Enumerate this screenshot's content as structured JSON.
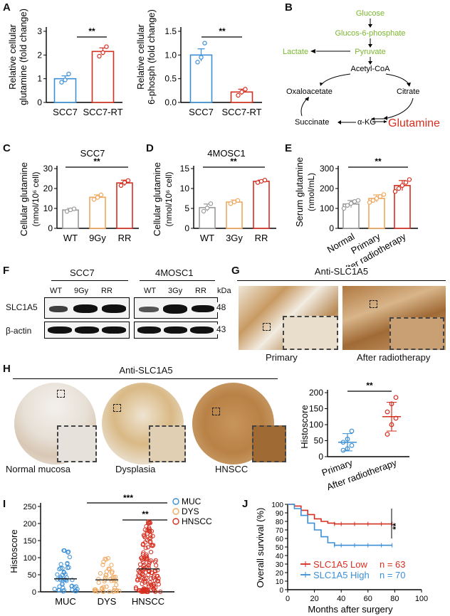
{
  "figure": {
    "panel_labels": [
      "A",
      "B",
      "C",
      "D",
      "E",
      "F",
      "G",
      "H",
      "I",
      "J"
    ],
    "significance": {
      "two": "**",
      "three": "***"
    }
  },
  "panelA": {
    "left": {
      "ylabel_1": "Relative cellular",
      "ylabel_2": "glutamine (fold change)",
      "yticks": [
        "0",
        "1",
        "2",
        "3"
      ],
      "sig": "**"
    },
    "right": {
      "ylabel_1": "Relative cellular",
      "ylabel_2": "6-phosph (fold change)",
      "yticks": [
        "0.0",
        "0.5",
        "1.0",
        "1.5"
      ],
      "sig": "**"
    }
  },
  "panelB": {
    "glucose": "Glucose",
    "g6p": "Glucos-6-phosphate",
    "lactate": "Lactate",
    "pyruvate": "Pyruvate",
    "acetylcoa": "Acetyl-CoA",
    "oxaloacetate": "Oxaloacetate",
    "citrate": "Citrate",
    "succinate": "Succinate",
    "akg": "α-KG",
    "glutamine": "Glutamine",
    "colors": {
      "green": "#7ab52e",
      "red": "#d62e1f"
    }
  },
  "panelC": {
    "title": "SCC7",
    "ylabel_1": "Cellular glutamine",
    "ylabel_2": "(nmol/10⁶ cell)",
    "yticks": [
      "0",
      "10",
      "20",
      "30"
    ],
    "sig": "**"
  },
  "panelD": {
    "title": "4MOSC1",
    "ylabel_1": "Cellular glutamine",
    "ylabel_2": "(nmol/10⁶ cell)",
    "yticks": [
      "0",
      "5",
      "10",
      "15"
    ],
    "sig": "**"
  },
  "panelE": {
    "ylabel_1": "Serum glutamine",
    "ylabel_2": "(nmol/mL)",
    "yticks": [
      "0",
      "100",
      "200",
      "300"
    ],
    "sig": "**"
  },
  "panelF": {
    "groups": [
      "SCC7",
      "4MOSC1"
    ],
    "lanes_scc7": [
      "WT",
      "9Gy",
      "RR"
    ],
    "lanes_4mosc1": [
      "WT",
      "3Gy",
      "RR"
    ],
    "kda": "kDa",
    "rows": [
      {
        "label": "SLC1A5",
        "mw": "48"
      },
      {
        "label": "β-actin",
        "mw": "43"
      }
    ]
  },
  "panelG": {
    "title": "Anti-SLC1A5",
    "captions": [
      "Primary",
      "After radiotherapy"
    ]
  },
  "panelH": {
    "title": "Anti-SLC1A5",
    "captions": [
      "Normal mucosa",
      "Dysplasia",
      "HNSCC"
    ],
    "scatter": {
      "ylabel": "Histoscore",
      "yticks": [
        "0",
        "50",
        "100",
        "150",
        "200"
      ],
      "sig": "**"
    }
  },
  "panelI": {
    "ylabel": "Histoscore",
    "yticks": [
      "0",
      "50",
      "100",
      "150",
      "200",
      "250"
    ],
    "legend": [
      "MUC",
      "DYS",
      "HNSCC"
    ],
    "sig": [
      "***",
      "**"
    ]
  },
  "panelJ": {
    "ylabel": "Overall survival (%)",
    "xlabel": "Months after surgery",
    "xticks": [
      "0",
      "20",
      "40",
      "60",
      "80",
      "100"
    ],
    "yticks": [
      "0",
      "10",
      "20",
      "30",
      "40",
      "50",
      "60",
      "70",
      "80",
      "90",
      "100"
    ],
    "sig": "**",
    "legend": [
      {
        "label": "SLC1A5 Low",
        "n": "n = 63",
        "color": "#d62e1f"
      },
      {
        "label": "SLC1A5 High",
        "n": "n = 70",
        "color": "#3b8fd6"
      }
    ]
  },
  "chart_data": [
    {
      "id": "A_left",
      "type": "bar",
      "categories": [
        "SCC7",
        "SCC7-RT"
      ],
      "values": [
        1.0,
        2.15
      ],
      "errors": [
        0.12,
        0.15
      ],
      "points": [
        [
          0.85,
          0.95,
          1.2
        ],
        [
          1.95,
          2.1,
          2.35
        ]
      ],
      "ylim": [
        0,
        3
      ],
      "colors": [
        "#3b8fd6",
        "#d62e1f"
      ]
    },
    {
      "id": "A_right",
      "type": "bar",
      "categories": [
        "SCC7",
        "SCC7-RT"
      ],
      "values": [
        1.0,
        0.22
      ],
      "errors": [
        0.13,
        0.06
      ],
      "points": [
        [
          0.85,
          0.95,
          1.25
        ],
        [
          0.15,
          0.22,
          0.28
        ]
      ],
      "ylim": [
        0,
        1.5
      ],
      "colors": [
        "#3b8fd6",
        "#d62e1f"
      ]
    },
    {
      "id": "C",
      "type": "bar",
      "categories": [
        "WT",
        "9Gy",
        "RR"
      ],
      "values": [
        9.2,
        15.6,
        22.8
      ],
      "errors": [
        0.8,
        1.2,
        1.4
      ],
      "points": [
        [
          8.5,
          9.3,
          9.8
        ],
        [
          14.5,
          15.5,
          16.8
        ],
        [
          21.5,
          23.0,
          24.0
        ]
      ],
      "ylim": [
        0,
        30
      ],
      "colors": [
        "#9a9a9a",
        "#f0a860",
        "#d62e1f"
      ]
    },
    {
      "id": "D",
      "type": "bar",
      "categories": [
        "WT",
        "3Gy",
        "RR"
      ],
      "values": [
        5.2,
        6.6,
        11.8
      ],
      "errors": [
        0.9,
        0.5,
        0.3
      ],
      "points": [
        [
          4.3,
          5.1,
          6.2
        ],
        [
          6.2,
          6.6,
          7.0
        ],
        [
          11.5,
          11.8,
          12.1
        ]
      ],
      "ylim": [
        0,
        15
      ],
      "colors": [
        "#9a9a9a",
        "#f0a860",
        "#d62e1f"
      ]
    },
    {
      "id": "E",
      "type": "bar",
      "categories": [
        "Normal",
        "Primary",
        "After radiotherapy"
      ],
      "values": [
        122,
        150,
        215
      ],
      "errors": [
        18,
        18,
        25
      ],
      "points": [
        [
          100,
          115,
          125,
          135,
          140
        ],
        [
          130,
          140,
          150,
          160,
          170
        ],
        [
          185,
          200,
          215,
          230,
          245
        ]
      ],
      "ylim": [
        0,
        300
      ],
      "colors": [
        "#9a9a9a",
        "#f0a860",
        "#d62e1f"
      ]
    },
    {
      "id": "H_scatter",
      "type": "scatter",
      "categories": [
        "Primary",
        "After radiotherapy"
      ],
      "means": [
        45,
        125
      ],
      "sd": [
        27,
        45
      ],
      "points": [
        [
          20,
          25,
          35,
          45,
          55,
          80
        ],
        [
          70,
          100,
          120,
          140,
          165,
          185
        ]
      ],
      "ylim": [
        0,
        200
      ],
      "colors": [
        "#3b8fd6",
        "#d62e1f"
      ]
    },
    {
      "id": "I",
      "type": "scatter",
      "categories": [
        "MUC",
        "DYS",
        "HNSCC"
      ],
      "means": [
        38,
        35,
        67
      ],
      "sd": [
        25,
        22,
        45
      ],
      "ylim": [
        0,
        250
      ],
      "colors": [
        "#3b8fd6",
        "#f0a860",
        "#d62e1f"
      ]
    },
    {
      "id": "J",
      "type": "line",
      "xlim": [
        0,
        100
      ],
      "ylim": [
        0,
        100
      ],
      "series": [
        {
          "name": "SLC1A5 Low",
          "x": [
            0,
            5,
            10,
            15,
            20,
            25,
            30,
            35,
            40,
            50,
            60,
            70,
            78
          ],
          "y": [
            100,
            98,
            93,
            88,
            83,
            80,
            78,
            77,
            77,
            77,
            77,
            77,
            77
          ]
        },
        {
          "name": "SLC1A5 High",
          "x": [
            0,
            5,
            10,
            15,
            20,
            25,
            30,
            35,
            40,
            50,
            60,
            70,
            78
          ],
          "y": [
            100,
            95,
            87,
            78,
            70,
            62,
            55,
            52,
            52,
            52,
            52,
            52,
            52
          ]
        }
      ]
    }
  ]
}
